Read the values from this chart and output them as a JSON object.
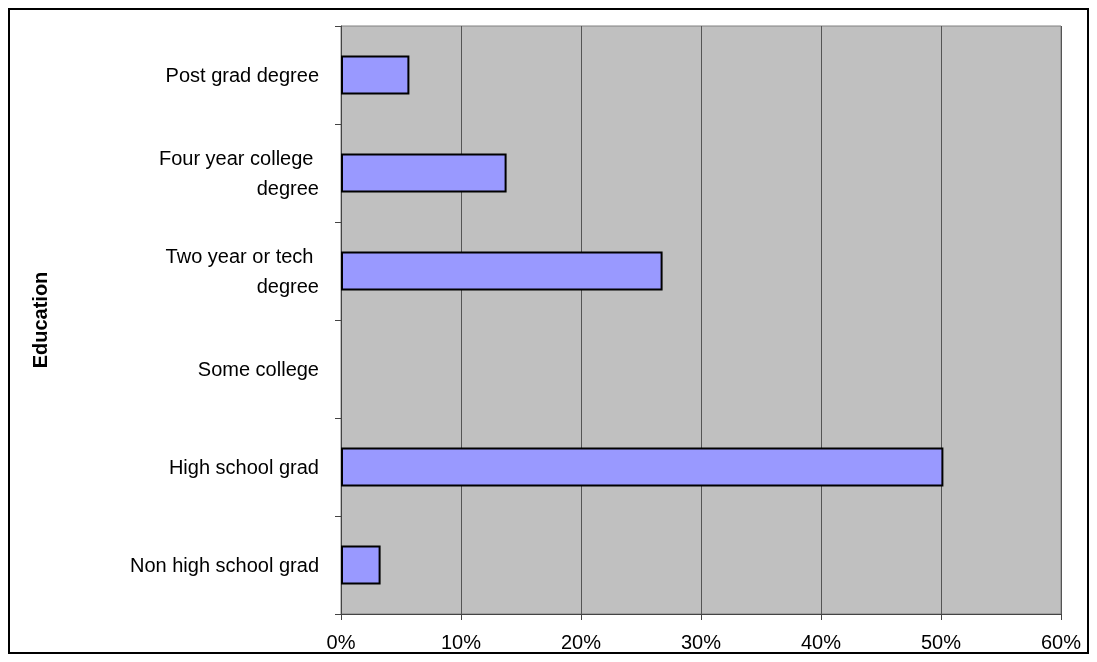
{
  "chart_data": {
    "type": "bar",
    "orientation": "horizontal",
    "ylabel": "Education",
    "categories": [
      "Post grad degree",
      "Four year college degree",
      "Two year or tech degree",
      "Some college",
      "High school grad",
      "Non high school grad"
    ],
    "values": [
      5.7,
      13.8,
      26.8,
      0,
      50.2,
      3.3
    ],
    "color": "#9999ff",
    "xlim": [
      0,
      60
    ],
    "xticks": [
      {
        "value": 0,
        "label": "0%"
      },
      {
        "value": 10,
        "label": "10%"
      },
      {
        "value": 20,
        "label": "20%"
      },
      {
        "value": 30,
        "label": "30%"
      },
      {
        "value": 40,
        "label": "40%"
      },
      {
        "value": 50,
        "label": "50%"
      },
      {
        "value": 60,
        "label": "60%"
      }
    ],
    "grid": "x"
  }
}
